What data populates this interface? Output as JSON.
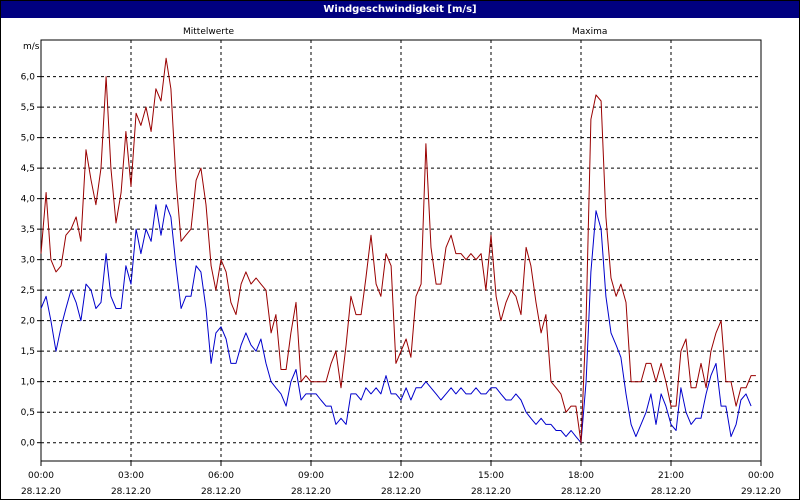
{
  "window": {
    "title": "Windgeschwindigkeit [m/s]"
  },
  "chart_data": {
    "type": "line",
    "title": "Windgeschwindigkeit [m/s]",
    "ylabel": "m/s",
    "xlabel": "",
    "ylim": [
      -0.3,
      6.6
    ],
    "xlim": [
      0,
      24
    ],
    "grid": true,
    "legend": "top",
    "yticks": [
      {
        "value": 0.0,
        "label": "0,0"
      },
      {
        "value": 0.5,
        "label": "0,5"
      },
      {
        "value": 1.0,
        "label": "1,0"
      },
      {
        "value": 1.5,
        "label": "1,5"
      },
      {
        "value": 2.0,
        "label": "2,0"
      },
      {
        "value": 2.5,
        "label": "2,5"
      },
      {
        "value": 3.0,
        "label": "3,0"
      },
      {
        "value": 3.5,
        "label": "3,5"
      },
      {
        "value": 4.0,
        "label": "4,0"
      },
      {
        "value": 4.5,
        "label": "4,5"
      },
      {
        "value": 5.0,
        "label": "5,0"
      },
      {
        "value": 5.5,
        "label": "5,5"
      },
      {
        "value": 6.0,
        "label": "6,0"
      }
    ],
    "xticks": [
      {
        "value": 0,
        "time": "00:00",
        "date": "28.12.20"
      },
      {
        "value": 3,
        "time": "03:00",
        "date": "28.12.20"
      },
      {
        "value": 6,
        "time": "06:00",
        "date": "28.12.20"
      },
      {
        "value": 9,
        "time": "09:00",
        "date": "28.12.20"
      },
      {
        "value": 12,
        "time": "12:00",
        "date": "28.12.20"
      },
      {
        "value": 15,
        "time": "15:00",
        "date": "28.12.20"
      },
      {
        "value": 18,
        "time": "18:00",
        "date": "28.12.20"
      },
      {
        "value": 21,
        "time": "21:00",
        "date": "28.12.20"
      },
      {
        "value": 24,
        "time": "00:00",
        "date": "29.12.20"
      }
    ],
    "series": [
      {
        "name": "Mittelwerte",
        "color": "#0000cc",
        "points": [
          [
            0,
            2.2
          ],
          [
            0.17,
            2.4
          ],
          [
            0.33,
            2.0
          ],
          [
            0.5,
            1.5
          ],
          [
            0.67,
            1.9
          ],
          [
            0.83,
            2.2
          ],
          [
            1.0,
            2.5
          ],
          [
            1.17,
            2.3
          ],
          [
            1.33,
            2.0
          ],
          [
            1.5,
            2.6
          ],
          [
            1.67,
            2.5
          ],
          [
            1.83,
            2.2
          ],
          [
            2.0,
            2.3
          ],
          [
            2.17,
            3.1
          ],
          [
            2.33,
            2.4
          ],
          [
            2.5,
            2.2
          ],
          [
            2.67,
            2.2
          ],
          [
            2.83,
            2.9
          ],
          [
            3.0,
            2.6
          ],
          [
            3.17,
            3.5
          ],
          [
            3.33,
            3.1
          ],
          [
            3.5,
            3.5
          ],
          [
            3.67,
            3.3
          ],
          [
            3.83,
            3.9
          ],
          [
            4.0,
            3.4
          ],
          [
            4.17,
            3.9
          ],
          [
            4.33,
            3.7
          ],
          [
            4.5,
            2.9
          ],
          [
            4.67,
            2.2
          ],
          [
            4.83,
            2.4
          ],
          [
            5.0,
            2.4
          ],
          [
            5.17,
            2.9
          ],
          [
            5.33,
            2.8
          ],
          [
            5.5,
            2.2
          ],
          [
            5.67,
            1.3
          ],
          [
            5.83,
            1.8
          ],
          [
            6.0,
            1.9
          ],
          [
            6.17,
            1.7
          ],
          [
            6.33,
            1.3
          ],
          [
            6.5,
            1.3
          ],
          [
            6.67,
            1.6
          ],
          [
            6.83,
            1.8
          ],
          [
            7.0,
            1.6
          ],
          [
            7.17,
            1.5
          ],
          [
            7.33,
            1.7
          ],
          [
            7.5,
            1.3
          ],
          [
            7.67,
            1.0
          ],
          [
            7.83,
            0.9
          ],
          [
            8.0,
            0.8
          ],
          [
            8.17,
            0.6
          ],
          [
            8.33,
            1.0
          ],
          [
            8.5,
            1.2
          ],
          [
            8.67,
            0.7
          ],
          [
            8.83,
            0.8
          ],
          [
            9.0,
            0.8
          ],
          [
            9.17,
            0.8
          ],
          [
            9.33,
            0.7
          ],
          [
            9.5,
            0.6
          ],
          [
            9.67,
            0.6
          ],
          [
            9.83,
            0.3
          ],
          [
            10.0,
            0.4
          ],
          [
            10.17,
            0.3
          ],
          [
            10.33,
            0.8
          ],
          [
            10.5,
            0.8
          ],
          [
            10.67,
            0.7
          ],
          [
            10.83,
            0.9
          ],
          [
            11.0,
            0.8
          ],
          [
            11.17,
            0.9
          ],
          [
            11.33,
            0.8
          ],
          [
            11.5,
            1.1
          ],
          [
            11.67,
            0.8
          ],
          [
            11.83,
            0.8
          ],
          [
            12.0,
            0.7
          ],
          [
            12.17,
            0.9
          ],
          [
            12.33,
            0.7
          ],
          [
            12.5,
            0.9
          ],
          [
            12.67,
            0.9
          ],
          [
            12.83,
            1.0
          ],
          [
            13.0,
            0.9
          ],
          [
            13.17,
            0.8
          ],
          [
            13.33,
            0.7
          ],
          [
            13.5,
            0.8
          ],
          [
            13.67,
            0.9
          ],
          [
            13.83,
            0.8
          ],
          [
            14.0,
            0.9
          ],
          [
            14.17,
            0.8
          ],
          [
            14.33,
            0.8
          ],
          [
            14.5,
            0.9
          ],
          [
            14.67,
            0.8
          ],
          [
            14.83,
            0.8
          ],
          [
            15.0,
            0.9
          ],
          [
            15.17,
            0.9
          ],
          [
            15.33,
            0.8
          ],
          [
            15.5,
            0.7
          ],
          [
            15.67,
            0.7
          ],
          [
            15.83,
            0.8
          ],
          [
            16.0,
            0.7
          ],
          [
            16.17,
            0.5
          ],
          [
            16.33,
            0.4
          ],
          [
            16.5,
            0.3
          ],
          [
            16.67,
            0.4
          ],
          [
            16.83,
            0.3
          ],
          [
            17.0,
            0.3
          ],
          [
            17.17,
            0.2
          ],
          [
            17.33,
            0.2
          ],
          [
            17.5,
            0.1
          ],
          [
            17.67,
            0.2
          ],
          [
            17.83,
            0.1
          ],
          [
            18.0,
            0.0
          ],
          [
            18.17,
            1.0
          ],
          [
            18.33,
            2.8
          ],
          [
            18.5,
            3.8
          ],
          [
            18.67,
            3.5
          ],
          [
            18.83,
            2.4
          ],
          [
            19.0,
            1.8
          ],
          [
            19.17,
            1.6
          ],
          [
            19.33,
            1.4
          ],
          [
            19.5,
            0.8
          ],
          [
            19.67,
            0.3
          ],
          [
            19.83,
            0.1
          ],
          [
            20.0,
            0.3
          ],
          [
            20.17,
            0.5
          ],
          [
            20.33,
            0.8
          ],
          [
            20.5,
            0.3
          ],
          [
            20.67,
            0.8
          ],
          [
            20.83,
            0.6
          ],
          [
            21.0,
            0.3
          ],
          [
            21.17,
            0.2
          ],
          [
            21.33,
            0.9
          ],
          [
            21.5,
            0.5
          ],
          [
            21.67,
            0.3
          ],
          [
            21.83,
            0.4
          ],
          [
            22.0,
            0.4
          ],
          [
            22.17,
            0.8
          ],
          [
            22.33,
            1.1
          ],
          [
            22.5,
            1.3
          ],
          [
            22.67,
            0.6
          ],
          [
            22.83,
            0.6
          ],
          [
            23.0,
            0.1
          ],
          [
            23.17,
            0.3
          ],
          [
            23.33,
            0.7
          ],
          [
            23.5,
            0.8
          ],
          [
            23.67,
            0.6
          ]
        ]
      },
      {
        "name": "Maxima",
        "color": "#990000",
        "points": [
          [
            0,
            3.1
          ],
          [
            0.17,
            4.1
          ],
          [
            0.33,
            3.0
          ],
          [
            0.5,
            2.8
          ],
          [
            0.67,
            2.9
          ],
          [
            0.83,
            3.4
          ],
          [
            1.0,
            3.5
          ],
          [
            1.17,
            3.7
          ],
          [
            1.33,
            3.3
          ],
          [
            1.5,
            4.8
          ],
          [
            1.67,
            4.3
          ],
          [
            1.83,
            3.9
          ],
          [
            2.0,
            4.5
          ],
          [
            2.17,
            6.0
          ],
          [
            2.33,
            4.5
          ],
          [
            2.5,
            3.6
          ],
          [
            2.67,
            4.1
          ],
          [
            2.83,
            5.1
          ],
          [
            3.0,
            4.2
          ],
          [
            3.17,
            5.4
          ],
          [
            3.33,
            5.2
          ],
          [
            3.5,
            5.5
          ],
          [
            3.67,
            5.1
          ],
          [
            3.83,
            5.8
          ],
          [
            4.0,
            5.6
          ],
          [
            4.17,
            6.3
          ],
          [
            4.33,
            5.8
          ],
          [
            4.5,
            4.3
          ],
          [
            4.67,
            3.3
          ],
          [
            4.83,
            3.4
          ],
          [
            5.0,
            3.5
          ],
          [
            5.17,
            4.3
          ],
          [
            5.33,
            4.5
          ],
          [
            5.5,
            3.9
          ],
          [
            5.67,
            2.9
          ],
          [
            5.83,
            2.5
          ],
          [
            6.0,
            3.0
          ],
          [
            6.17,
            2.8
          ],
          [
            6.33,
            2.3
          ],
          [
            6.5,
            2.1
          ],
          [
            6.67,
            2.6
          ],
          [
            6.83,
            2.8
          ],
          [
            7.0,
            2.6
          ],
          [
            7.17,
            2.7
          ],
          [
            7.33,
            2.6
          ],
          [
            7.5,
            2.5
          ],
          [
            7.67,
            1.8
          ],
          [
            7.83,
            2.1
          ],
          [
            8.0,
            1.2
          ],
          [
            8.17,
            1.2
          ],
          [
            8.33,
            1.8
          ],
          [
            8.5,
            2.3
          ],
          [
            8.67,
            1.0
          ],
          [
            8.83,
            1.1
          ],
          [
            9.0,
            1.0
          ],
          [
            9.17,
            1.0
          ],
          [
            9.33,
            1.0
          ],
          [
            9.5,
            1.0
          ],
          [
            9.67,
            1.3
          ],
          [
            9.83,
            1.5
          ],
          [
            10.0,
            0.9
          ],
          [
            10.17,
            1.6
          ],
          [
            10.33,
            2.4
          ],
          [
            10.5,
            2.1
          ],
          [
            10.67,
            2.1
          ],
          [
            10.83,
            2.7
          ],
          [
            11.0,
            3.4
          ],
          [
            11.17,
            2.6
          ],
          [
            11.33,
            2.4
          ],
          [
            11.5,
            3.1
          ],
          [
            11.67,
            2.9
          ],
          [
            11.83,
            1.3
          ],
          [
            12.0,
            1.5
          ],
          [
            12.17,
            1.7
          ],
          [
            12.33,
            1.4
          ],
          [
            12.5,
            2.4
          ],
          [
            12.67,
            2.6
          ],
          [
            12.83,
            4.9
          ],
          [
            13.0,
            3.2
          ],
          [
            13.17,
            2.6
          ],
          [
            13.33,
            2.6
          ],
          [
            13.5,
            3.2
          ],
          [
            13.67,
            3.4
          ],
          [
            13.83,
            3.1
          ],
          [
            14.0,
            3.1
          ],
          [
            14.17,
            3.0
          ],
          [
            14.33,
            3.1
          ],
          [
            14.5,
            3.0
          ],
          [
            14.67,
            3.1
          ],
          [
            14.83,
            2.5
          ],
          [
            15.0,
            3.4
          ],
          [
            15.17,
            2.4
          ],
          [
            15.33,
            2.0
          ],
          [
            15.5,
            2.3
          ],
          [
            15.67,
            2.5
          ],
          [
            15.83,
            2.4
          ],
          [
            16.0,
            2.1
          ],
          [
            16.17,
            3.2
          ],
          [
            16.33,
            2.9
          ],
          [
            16.5,
            2.3
          ],
          [
            16.67,
            1.8
          ],
          [
            16.83,
            2.1
          ],
          [
            17.0,
            1.0
          ],
          [
            17.17,
            0.9
          ],
          [
            17.33,
            0.8
          ],
          [
            17.5,
            0.5
          ],
          [
            17.67,
            0.6
          ],
          [
            17.83,
            0.6
          ],
          [
            18.0,
            0.0
          ],
          [
            18.17,
            2.0
          ],
          [
            18.33,
            5.3
          ],
          [
            18.5,
            5.7
          ],
          [
            18.67,
            5.6
          ],
          [
            18.83,
            3.7
          ],
          [
            19.0,
            2.7
          ],
          [
            19.17,
            2.4
          ],
          [
            19.33,
            2.6
          ],
          [
            19.5,
            2.3
          ],
          [
            19.67,
            1.0
          ],
          [
            19.83,
            1.0
          ],
          [
            20.0,
            1.0
          ],
          [
            20.17,
            1.3
          ],
          [
            20.33,
            1.3
          ],
          [
            20.5,
            1.0
          ],
          [
            20.67,
            1.3
          ],
          [
            20.83,
            1.0
          ],
          [
            21.0,
            0.6
          ],
          [
            21.17,
            0.6
          ],
          [
            21.33,
            1.5
          ],
          [
            21.5,
            1.7
          ],
          [
            21.67,
            0.9
          ],
          [
            21.83,
            0.9
          ],
          [
            22.0,
            1.3
          ],
          [
            22.17,
            0.9
          ],
          [
            22.33,
            1.5
          ],
          [
            22.5,
            1.8
          ],
          [
            22.67,
            2.0
          ],
          [
            22.83,
            1.0
          ],
          [
            23.0,
            1.0
          ],
          [
            23.17,
            0.6
          ],
          [
            23.33,
            0.9
          ],
          [
            23.5,
            0.9
          ],
          [
            23.67,
            1.1
          ],
          [
            23.83,
            1.1
          ]
        ]
      }
    ]
  }
}
